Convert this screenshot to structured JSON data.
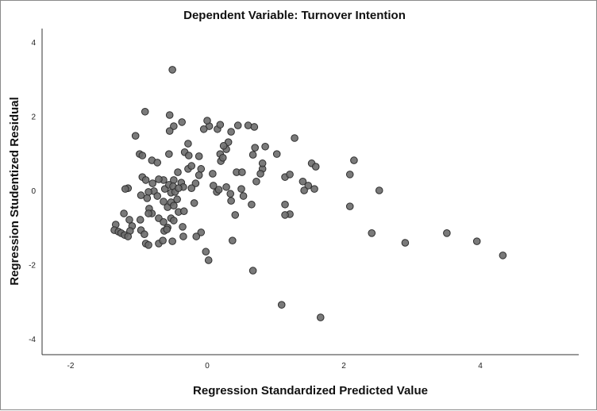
{
  "chart_data": {
    "type": "scatter",
    "title": "Dependent Variable: Turnover Intention",
    "xlabel": "Regression Standardized Predicted Value",
    "ylabel": "Regression Studentized Residual",
    "xlim": [
      -2.4,
      5.4
    ],
    "ylim": [
      -4.5,
      4.4
    ],
    "xticks": [
      -2,
      0,
      2,
      4
    ],
    "yticks": [
      -4,
      -2,
      0,
      2,
      4
    ],
    "xtick_labels": [
      "-2",
      "0",
      "2",
      "4"
    ],
    "ytick_labels": [
      "-4",
      "-2",
      "0",
      "2",
      "4"
    ],
    "grid": false,
    "points": [
      [
        2.52,
        0.0
      ],
      [
        2.15,
        0.81
      ],
      [
        2.09,
        0.43
      ],
      [
        2.09,
        -0.43
      ],
      [
        2.41,
        -1.15
      ],
      [
        2.9,
        -1.41
      ],
      [
        3.51,
        -1.15
      ],
      [
        3.95,
        -1.37
      ],
      [
        4.33,
        -1.75
      ],
      [
        1.66,
        -3.42
      ],
      [
        1.09,
        -3.08
      ],
      [
        0.67,
        -2.16
      ],
      [
        0.02,
        -1.88
      ],
      [
        -0.02,
        -1.65
      ],
      [
        -0.51,
        3.25
      ],
      [
        1.28,
        1.41
      ],
      [
        1.02,
        0.98
      ],
      [
        1.53,
        0.73
      ],
      [
        1.59,
        0.64
      ],
      [
        1.14,
        0.36
      ],
      [
        1.21,
        0.43
      ],
      [
        1.4,
        0.24
      ],
      [
        1.48,
        0.13
      ],
      [
        1.57,
        0.04
      ],
      [
        1.42,
        0.0
      ],
      [
        1.14,
        -0.38
      ],
      [
        1.21,
        -0.64
      ],
      [
        1.14,
        -0.66
      ],
      [
        0.65,
        -0.38
      ],
      [
        0.41,
        -0.66
      ],
      [
        0.37,
        -1.35
      ],
      [
        0.81,
        0.58
      ],
      [
        0.72,
        0.24
      ],
      [
        0.78,
        0.45
      ],
      [
        0.67,
        0.96
      ],
      [
        0.7,
        1.15
      ],
      [
        0.6,
        1.75
      ],
      [
        0.69,
        1.71
      ],
      [
        0.85,
        1.18
      ],
      [
        0.81,
        0.73
      ],
      [
        0.45,
        1.75
      ],
      [
        0.35,
        1.58
      ],
      [
        0.43,
        0.49
      ],
      [
        0.28,
        1.11
      ],
      [
        0.31,
        1.3
      ],
      [
        0.24,
        1.2
      ],
      [
        0.19,
        0.98
      ],
      [
        0.2,
        0.79
      ],
      [
        0.23,
        0.88
      ],
      [
        0.03,
        1.73
      ],
      [
        0.0,
        1.88
      ],
      [
        0.15,
        1.65
      ],
      [
        0.19,
        1.77
      ],
      [
        -0.05,
        1.65
      ],
      [
        -0.12,
        0.92
      ],
      [
        -0.09,
        0.58
      ],
      [
        0.08,
        0.45
      ],
      [
        0.09,
        0.13
      ],
      [
        0.14,
        -0.04
      ],
      [
        0.17,
        0.02
      ],
      [
        0.28,
        0.09
      ],
      [
        0.34,
        -0.09
      ],
      [
        0.35,
        -0.28
      ],
      [
        0.5,
        0.04
      ],
      [
        0.53,
        -0.15
      ],
      [
        0.51,
        0.49
      ],
      [
        -0.09,
        -1.13
      ],
      [
        -0.16,
        -1.24
      ],
      [
        -0.28,
        1.26
      ],
      [
        -0.33,
        1.03
      ],
      [
        -0.27,
        0.94
      ],
      [
        -0.37,
        1.84
      ],
      [
        -0.49,
        1.73
      ],
      [
        -0.55,
        1.6
      ],
      [
        -0.55,
        2.03
      ],
      [
        -0.91,
        2.12
      ],
      [
        -1.05,
        1.47
      ],
      [
        -0.99,
        0.98
      ],
      [
        -0.95,
        0.94
      ],
      [
        -0.81,
        0.81
      ],
      [
        -0.73,
        0.75
      ],
      [
        -0.56,
        0.98
      ],
      [
        -0.28,
        0.58
      ],
      [
        -0.23,
        0.66
      ],
      [
        -0.43,
        0.49
      ],
      [
        -0.49,
        0.28
      ],
      [
        -0.12,
        0.41
      ],
      [
        -0.17,
        0.19
      ],
      [
        -0.23,
        0.06
      ],
      [
        -0.38,
        0.21
      ],
      [
        -0.35,
        0.09
      ],
      [
        -0.64,
        0.28
      ],
      [
        -0.71,
        0.3
      ],
      [
        -0.95,
        0.36
      ],
      [
        -0.9,
        0.28
      ],
      [
        -0.8,
        0.19
      ],
      [
        -0.78,
        -0.02
      ],
      [
        -0.73,
        -0.15
      ],
      [
        -0.86,
        -0.04
      ],
      [
        -0.88,
        -0.21
      ],
      [
        -1.16,
        0.06
      ],
      [
        -1.2,
        0.04
      ],
      [
        -0.97,
        -0.13
      ],
      [
        -0.62,
        0.04
      ],
      [
        -0.56,
        0.15
      ],
      [
        -0.5,
        0.11
      ],
      [
        -0.53,
        -0.06
      ],
      [
        -0.47,
        -0.04
      ],
      [
        -0.42,
        0.06
      ],
      [
        -0.64,
        -0.3
      ],
      [
        -0.58,
        -0.45
      ],
      [
        -0.53,
        -0.32
      ],
      [
        -0.49,
        -0.41
      ],
      [
        -0.44,
        -0.24
      ],
      [
        -0.42,
        -0.58
      ],
      [
        -0.34,
        -0.56
      ],
      [
        -0.85,
        -0.49
      ],
      [
        -0.81,
        -0.62
      ],
      [
        -0.86,
        -0.62
      ],
      [
        -0.71,
        -0.75
      ],
      [
        -0.64,
        -0.85
      ],
      [
        -0.53,
        -0.75
      ],
      [
        -0.49,
        -0.81
      ],
      [
        -0.58,
        -1.0
      ],
      [
        -0.19,
        -0.34
      ],
      [
        -1.22,
        -0.62
      ],
      [
        -0.98,
        -0.79
      ],
      [
        -1.34,
        -0.92
      ],
      [
        -1.14,
        -0.79
      ],
      [
        -1.1,
        -0.96
      ],
      [
        -1.13,
        -1.09
      ],
      [
        -1.36,
        -1.07
      ],
      [
        -1.3,
        -1.11
      ],
      [
        -1.26,
        -1.15
      ],
      [
        -1.21,
        -1.2
      ],
      [
        -1.16,
        -1.24
      ],
      [
        -0.97,
        -1.07
      ],
      [
        -0.92,
        -1.18
      ],
      [
        -0.9,
        -1.43
      ],
      [
        -0.86,
        -1.47
      ],
      [
        -0.71,
        -1.43
      ],
      [
        -0.65,
        -1.35
      ],
      [
        -0.63,
        -1.09
      ],
      [
        -0.59,
        -1.05
      ],
      [
        -0.51,
        -1.37
      ],
      [
        -0.35,
        -1.24
      ],
      [
        -0.36,
        -0.98
      ]
    ]
  }
}
